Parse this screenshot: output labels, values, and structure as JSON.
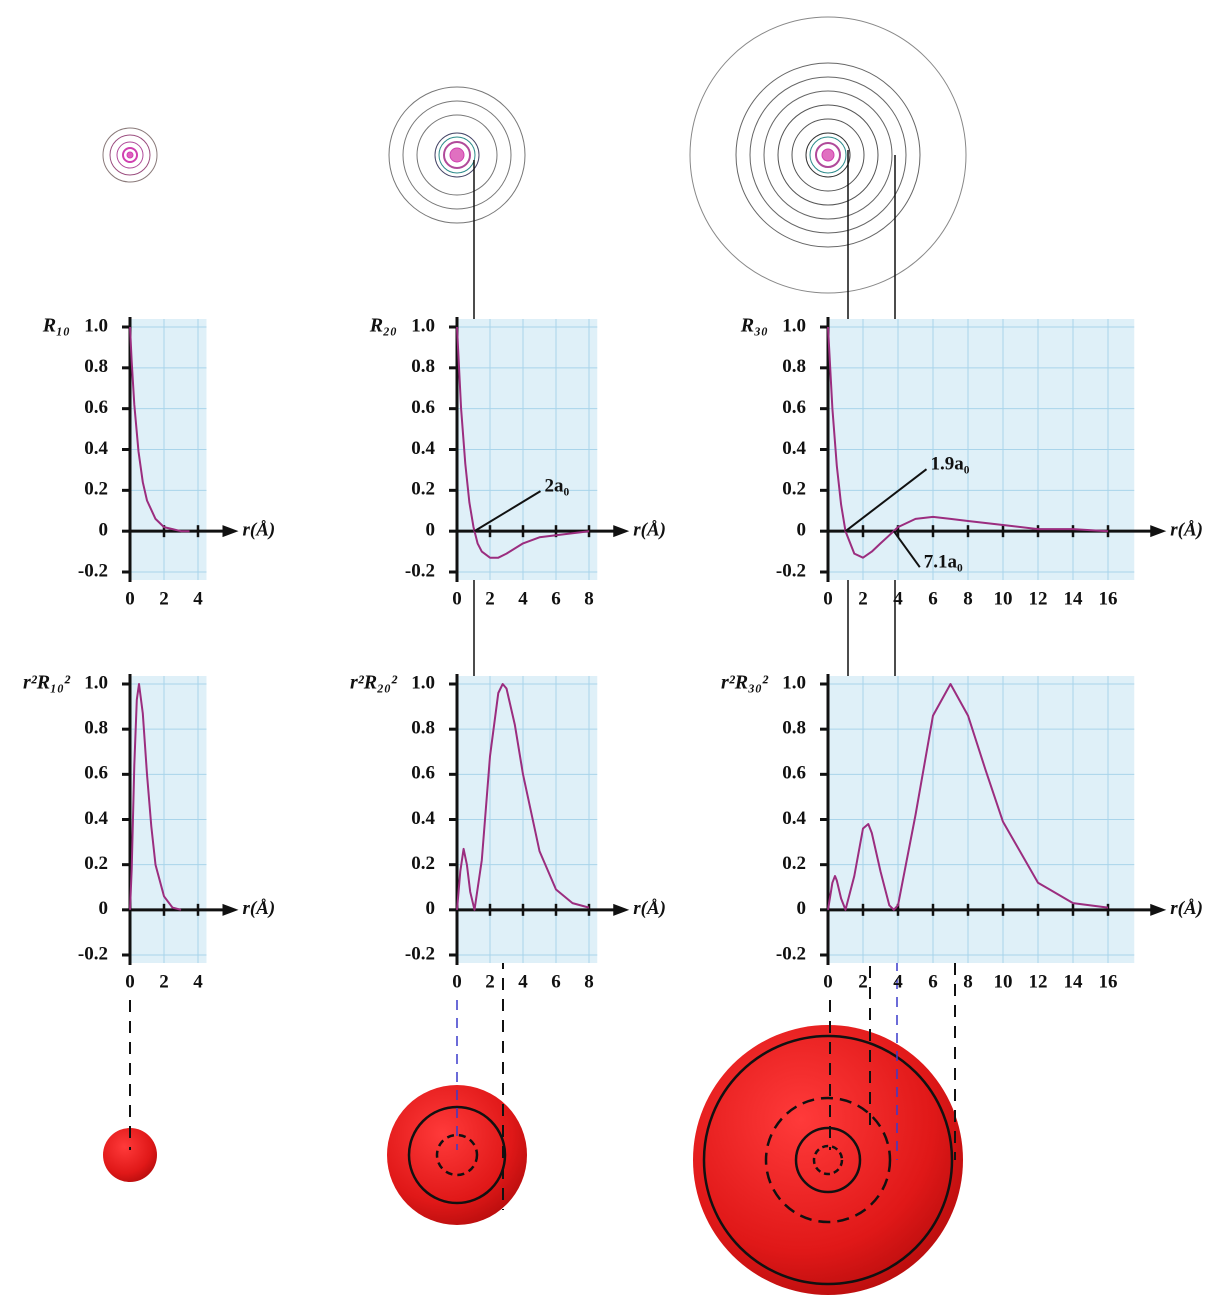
{
  "chart_data": [
    {
      "type": "line",
      "y_label": "R₁₀",
      "x_label": "r(Å)",
      "color": "#9b2d7f",
      "x": [
        0,
        0.1,
        0.25,
        0.5,
        0.75,
        1.0,
        1.5,
        2,
        2.5,
        3,
        3.5
      ],
      "values": [
        1,
        0.83,
        0.62,
        0.39,
        0.24,
        0.15,
        0.06,
        0.02,
        0.01,
        0.0,
        0.0
      ],
      "xlim": [
        0,
        4.5
      ],
      "ylim": [
        -0.2,
        1.0
      ],
      "xticks": [
        0,
        2,
        4
      ],
      "yticks": [
        {
          "value": 1,
          "label": "1.0"
        },
        0.8,
        0.6,
        0.4,
        0.2,
        0,
        -0.2
      ],
      "grid": true
    },
    {
      "type": "line",
      "y_label": "R₂₀",
      "x_label": "r(Å)",
      "color": "#9b2d7f",
      "x": [
        0,
        0.25,
        0.5,
        0.75,
        1.0,
        1.25,
        1.5,
        2,
        2.5,
        3,
        4,
        5,
        6,
        7,
        8
      ],
      "values": [
        1,
        0.6,
        0.33,
        0.14,
        0.02,
        -0.06,
        -0.1,
        -0.13,
        -0.13,
        -0.11,
        -0.06,
        -0.03,
        -0.02,
        -0.01,
        0.0
      ],
      "xlim": [
        0,
        8.5
      ],
      "ylim": [
        -0.2,
        1.0
      ],
      "xticks": [
        0,
        2,
        4,
        6,
        8
      ],
      "yticks": [
        {
          "value": 1,
          "label": "1.0"
        },
        0.8,
        0.6,
        0.4,
        0.2,
        0,
        -0.2
      ],
      "grid": true,
      "annotations": [
        {
          "text": "2a₀",
          "x": 1.06,
          "y": 0
        }
      ]
    },
    {
      "type": "line",
      "y_label": "R₃₀",
      "x_label": "r(Å)",
      "color": "#9b2d7f",
      "x": [
        0,
        0.25,
        0.5,
        0.75,
        1.0,
        1.5,
        2,
        2.5,
        3,
        3.5,
        4,
        5,
        6,
        7,
        8,
        10,
        12,
        14,
        16
      ],
      "values": [
        1,
        0.6,
        0.32,
        0.13,
        0.0,
        -0.11,
        -0.13,
        -0.1,
        -0.06,
        -0.02,
        0.02,
        0.06,
        0.07,
        0.06,
        0.05,
        0.03,
        0.01,
        0.01,
        0.0
      ],
      "xlim": [
        0,
        17.5
      ],
      "ylim": [
        -0.2,
        1.0
      ],
      "xticks": [
        0,
        2,
        4,
        6,
        8,
        10,
        12,
        14,
        16
      ],
      "yticks": [
        {
          "value": 1,
          "label": "1.0"
        },
        0.8,
        0.6,
        0.4,
        0.2,
        0,
        -0.2
      ],
      "grid": true,
      "annotations": [
        {
          "text": "1.9a₀",
          "x": 1.0,
          "y": 0
        },
        {
          "text": "7.1a₀",
          "x": 3.76,
          "y": 0
        }
      ]
    },
    {
      "type": "line",
      "y_label": "r²R₁₀²",
      "x_label": "r(Å)",
      "color": "#9b2d7f",
      "x": [
        0,
        0.1,
        0.25,
        0.4,
        0.53,
        0.75,
        1,
        1.25,
        1.5,
        2,
        2.5,
        3
      ],
      "values": [
        0,
        0.18,
        0.64,
        0.93,
        1.0,
        0.87,
        0.6,
        0.37,
        0.2,
        0.06,
        0.01,
        0.0
      ],
      "xlim": [
        0,
        4.5
      ],
      "ylim": [
        -0.2,
        1.0
      ],
      "xticks": [
        0,
        2,
        4
      ],
      "yticks": [
        {
          "value": 1,
          "label": "1.0"
        },
        0.8,
        0.6,
        0.4,
        0.2,
        0,
        -0.2
      ],
      "grid": true
    },
    {
      "type": "line",
      "y_label": "r²R₂₀²",
      "x_label": "r(Å)",
      "color": "#9b2d7f",
      "x": [
        0,
        0.2,
        0.4,
        0.6,
        0.8,
        1.06,
        1.5,
        2,
        2.5,
        2.77,
        3,
        3.5,
        4,
        5,
        6,
        7,
        8
      ],
      "values": [
        0,
        0.17,
        0.27,
        0.2,
        0.08,
        0,
        0.22,
        0.68,
        0.96,
        1.0,
        0.98,
        0.82,
        0.6,
        0.26,
        0.09,
        0.03,
        0.01
      ],
      "xlim": [
        0,
        8.5
      ],
      "ylim": [
        -0.2,
        1.0
      ],
      "xticks": [
        0,
        2,
        4,
        6,
        8
      ],
      "yticks": [
        {
          "value": 1,
          "label": "1.0"
        },
        0.8,
        0.6,
        0.4,
        0.2,
        0,
        -0.2
      ],
      "grid": true
    },
    {
      "type": "line",
      "y_label": "r²R₃₀²",
      "x_label": "r(Å)",
      "color": "#9b2d7f",
      "x": [
        0,
        0.25,
        0.4,
        0.5,
        0.75,
        1.0,
        1.5,
        2,
        2.3,
        2.5,
        3,
        3.5,
        3.76,
        4,
        5,
        6,
        7,
        8,
        9,
        10,
        12,
        14,
        16
      ],
      "values": [
        0,
        0.12,
        0.15,
        0.13,
        0.05,
        0,
        0.15,
        0.36,
        0.38,
        0.34,
        0.17,
        0.02,
        0,
        0.02,
        0.42,
        0.86,
        1.0,
        0.86,
        0.62,
        0.39,
        0.12,
        0.03,
        0.01
      ],
      "xlim": [
        0,
        17.5
      ],
      "ylim": [
        -0.2,
        1.0
      ],
      "xticks": [
        0,
        2,
        4,
        6,
        8,
        10,
        12,
        14,
        16
      ],
      "yticks": [
        {
          "value": 1,
          "label": "1.0"
        },
        0.8,
        0.6,
        0.4,
        0.2,
        0,
        -0.2
      ],
      "grid": true
    }
  ]
}
